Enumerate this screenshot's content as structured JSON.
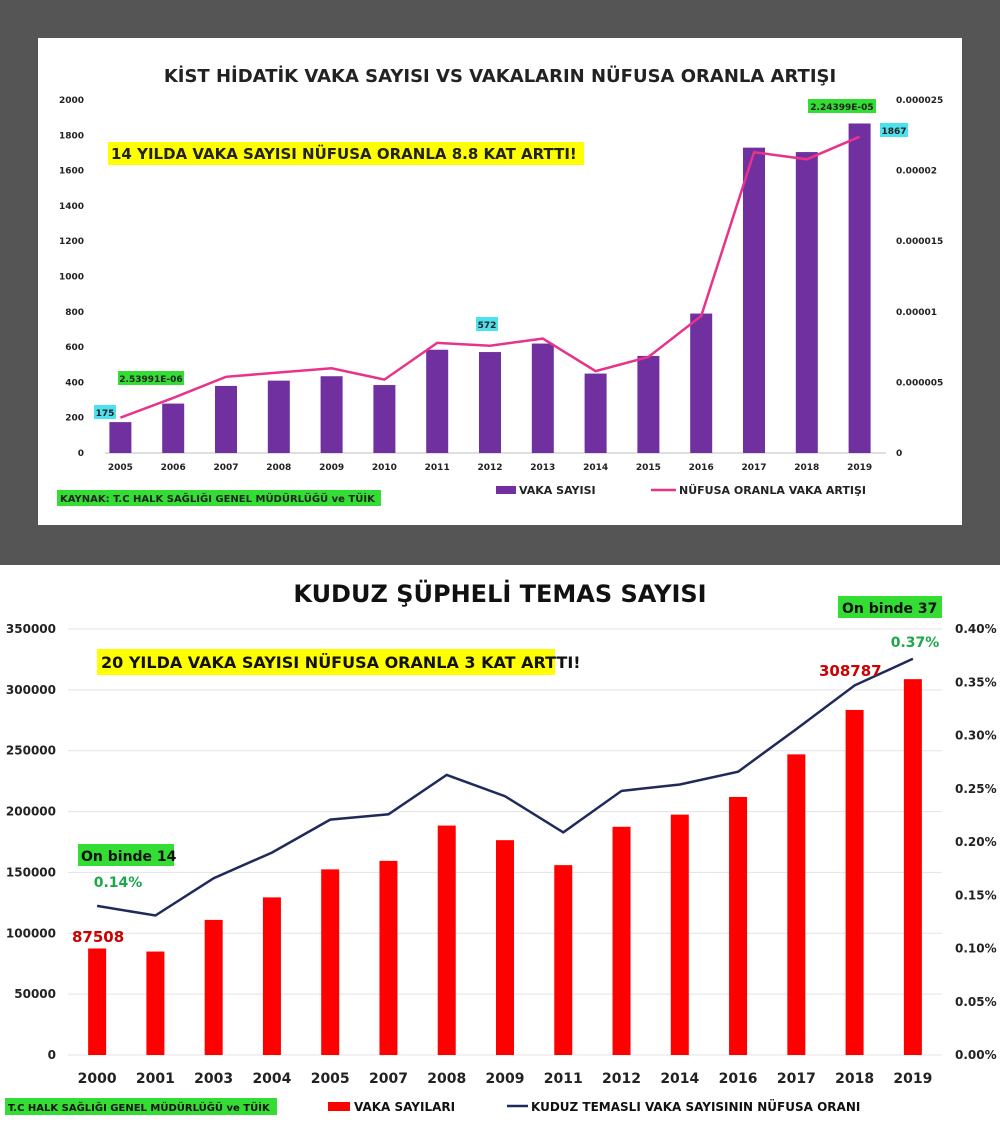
{
  "chart_data": [
    {
      "type": "bar",
      "title": "KİST HİDATİK VAKA SAYISI VS VAKALARIN NÜFUSA ORANLA ARTIŞI",
      "annotation": "14 YILDA VAKA SAYISI NÜFUSA ORANLA 8.8 KAT ARTTI!",
      "source": "KAYNAK: T.C HALK SAĞLIĞI GENEL MÜDÜRLÜĞÜ ve TÜİK",
      "categories": [
        "2005",
        "2006",
        "2007",
        "2008",
        "2009",
        "2010",
        "2011",
        "2012",
        "2013",
        "2014",
        "2015",
        "2016",
        "2017",
        "2018",
        "2019"
      ],
      "series": [
        {
          "name": "VAKA SAYISI",
          "type": "bar",
          "axis": "left",
          "color": "#7030a0",
          "values": [
            175,
            280,
            380,
            410,
            435,
            385,
            585,
            572,
            620,
            450,
            550,
            790,
            1730,
            1705,
            1867
          ]
        },
        {
          "name": "NÜFUSA ORANLA VAKA ARTIŞI",
          "type": "line",
          "axis": "right",
          "color": "#e8338b",
          "values": [
            2.5e-06,
            3.9e-06,
            5.4e-06,
            5.7e-06,
            6e-06,
            5.2e-06,
            7.8e-06,
            7.6e-06,
            8.1e-06,
            5.8e-06,
            6.8e-06,
            9.7e-06,
            2.13e-05,
            2.08e-05,
            2.24e-05
          ]
        }
      ],
      "ylim": [
        0,
        2000
      ],
      "yticks": [
        "0",
        "200",
        "400",
        "600",
        "800",
        "1000",
        "1200",
        "1400",
        "1600",
        "1800",
        "2000"
      ],
      "y2lim": [
        0,
        2.5e-05
      ],
      "y2ticks": [
        "0",
        "0.000005",
        "0.00001",
        "0.000015",
        "0.00002",
        "0.000025"
      ],
      "labels": {
        "first_bar": "175",
        "mid_bar": "572",
        "last_bar": "1867",
        "first_rate": "2.53991E-06",
        "last_rate": "2.24399E-05"
      },
      "grid": false,
      "legend": "bottom"
    },
    {
      "type": "bar",
      "title": "KUDUZ ŞÜPHELİ TEMAS SAYISI",
      "annotation": "20 YILDA VAKA SAYISI NÜFUSA ORANLA 3 KAT ARTTI!",
      "source": "T.C HALK SAĞLIĞI GENEL MÜDÜRLÜĞÜ ve TÜİK",
      "categories": [
        "2000",
        "2001",
        "2003",
        "2004",
        "2005",
        "2007",
        "2008",
        "2009",
        "2011",
        "2012",
        "2014",
        "2016",
        "2017",
        "2018",
        "2019"
      ],
      "series": [
        {
          "name": "VAKA SAYILARI",
          "type": "bar",
          "axis": "left",
          "color": "#ff0000",
          "values": [
            87508,
            85000,
            111000,
            129500,
            152500,
            159500,
            188500,
            176500,
            156000,
            187500,
            197500,
            212000,
            247000,
            283500,
            308787
          ]
        },
        {
          "name": "KUDUZ TEMASLI VAKA SAYISININ NÜFUSA ORANI",
          "type": "line",
          "axis": "right",
          "color": "#1f2a5a",
          "values": [
            0.0014,
            0.00131,
            0.00166,
            0.0019,
            0.00221,
            0.00226,
            0.00263,
            0.00243,
            0.00209,
            0.00248,
            0.00254,
            0.00266,
            0.00306,
            0.00347,
            0.00372
          ]
        }
      ],
      "ylim": [
        0,
        350000
      ],
      "yticks": [
        "0",
        "50000",
        "100000",
        "150000",
        "200000",
        "250000",
        "300000",
        "350000"
      ],
      "y2lim": [
        0,
        0.004
      ],
      "y2ticks": [
        "0.00%",
        "0.05%",
        "0.10%",
        "0.15%",
        "0.20%",
        "0.25%",
        "0.30%",
        "0.35%",
        "0.40%"
      ],
      "labels": {
        "first_bar": "87508",
        "last_bar": "308787",
        "first_rate": "0.14%",
        "last_rate": "0.37%",
        "first_binde": "On binde 14",
        "last_binde": "On binde 37"
      },
      "grid": true,
      "legend": "bottom"
    }
  ]
}
